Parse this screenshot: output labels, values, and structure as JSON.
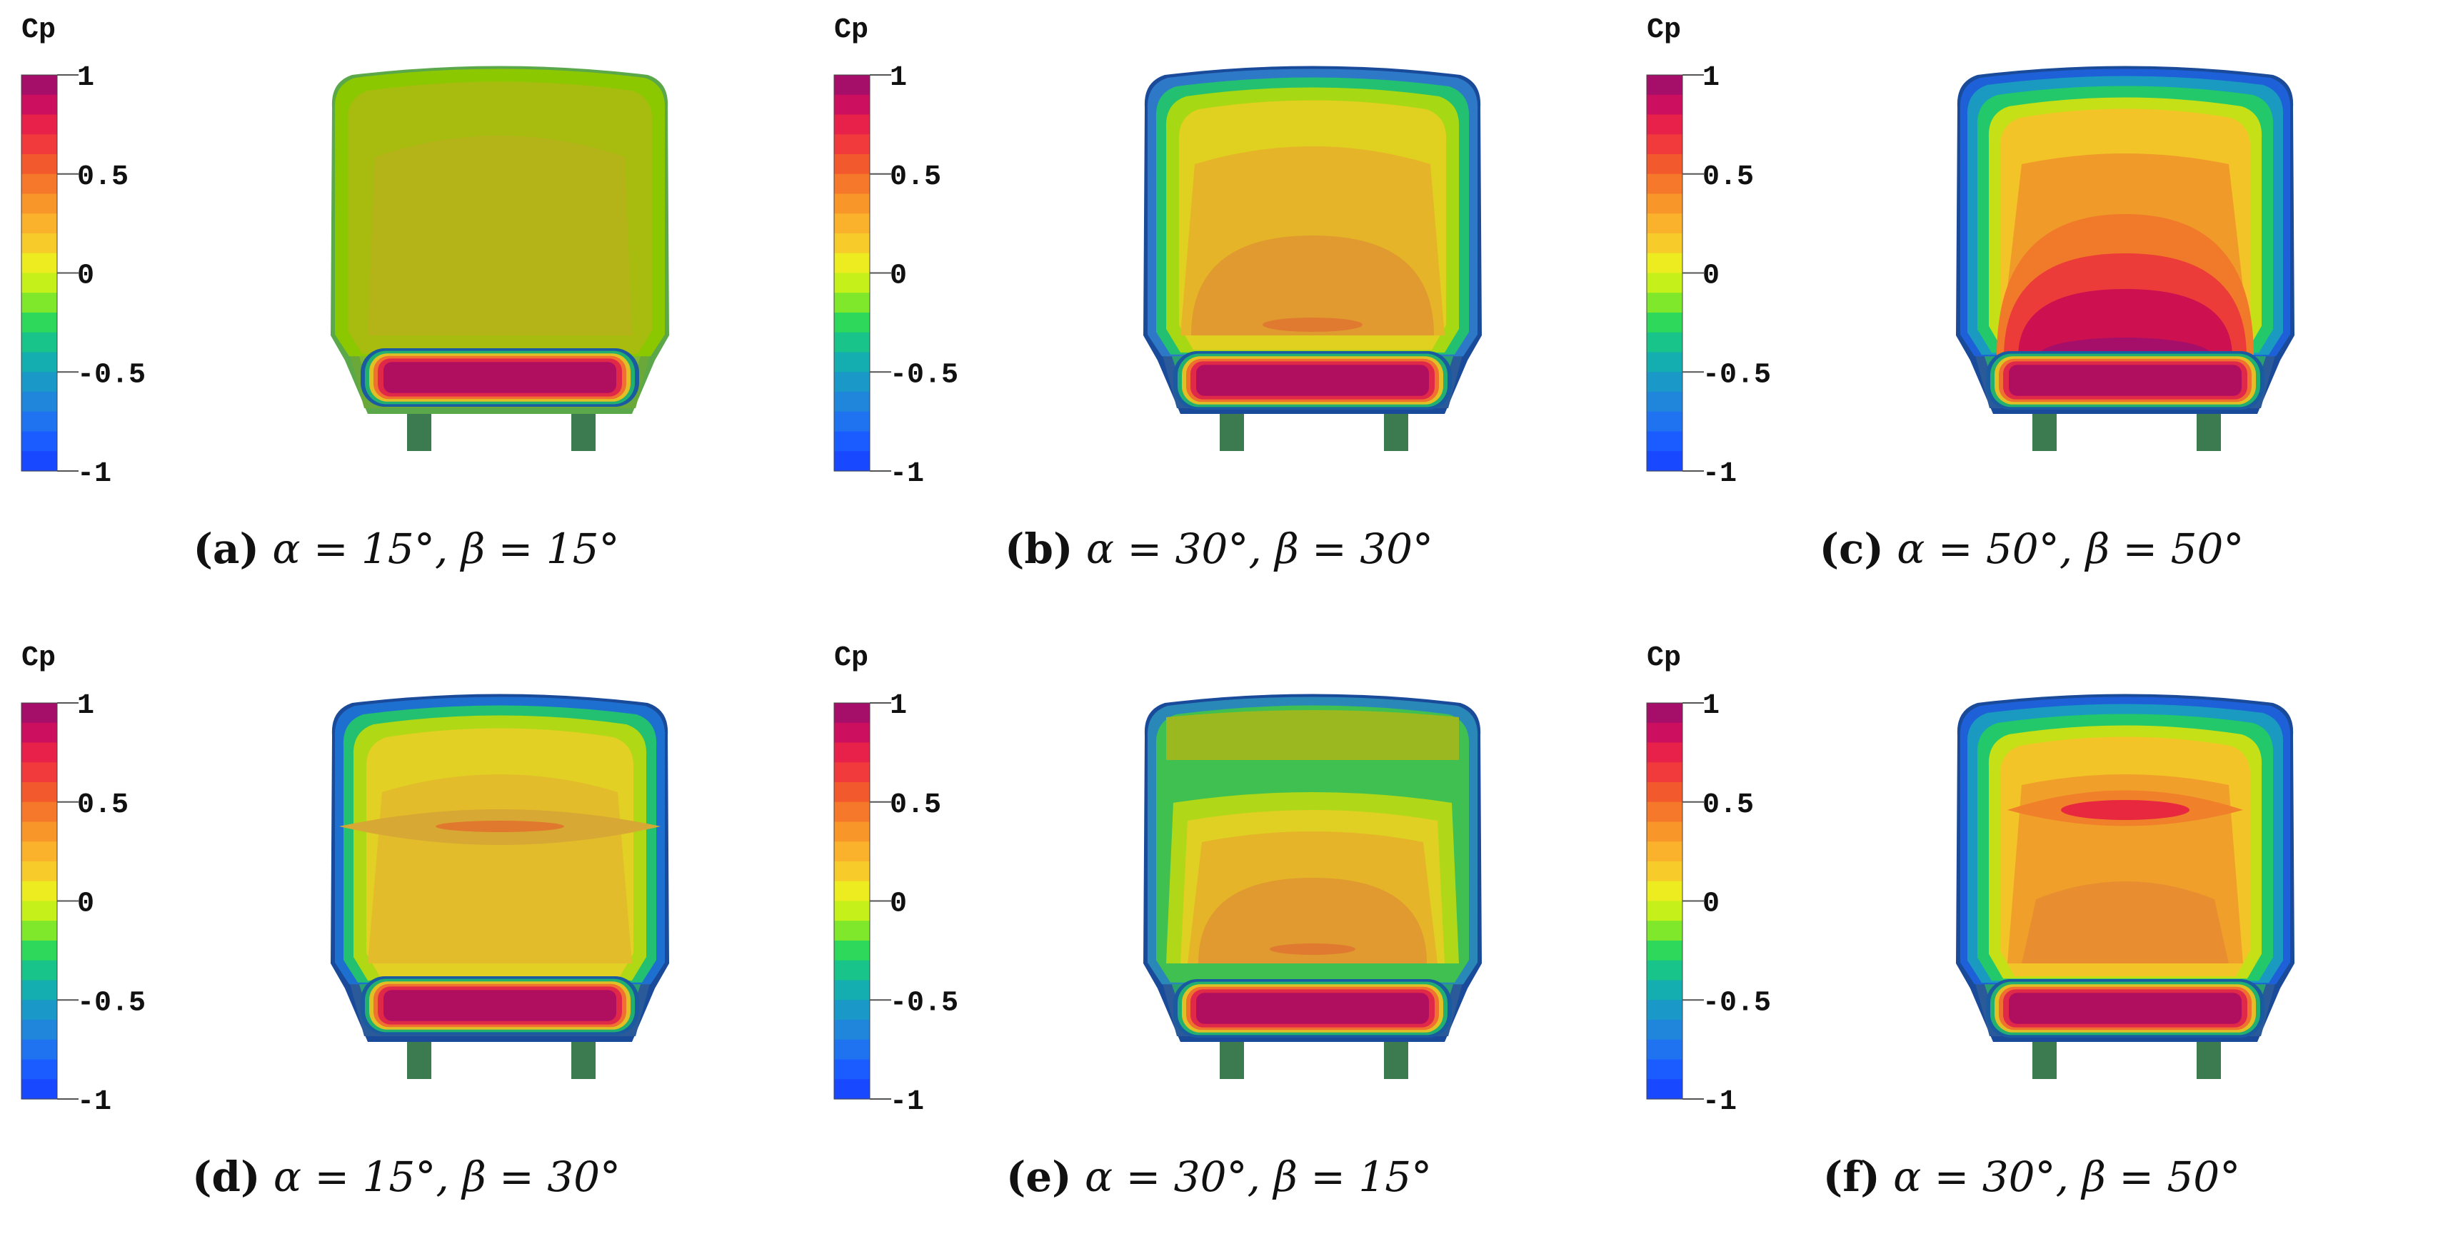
{
  "colorbar": {
    "title": "Cp",
    "ticks": [
      "1",
      "0.5",
      "0",
      "-0.5",
      "-1"
    ],
    "colors": [
      "#a50f6a",
      "#cc0f5e",
      "#e8214a",
      "#f03a3c",
      "#f25a2e",
      "#f6782a",
      "#f8962a",
      "#fab22c",
      "#f7cc2a",
      "#ecec20",
      "#c6f01a",
      "#7fe82b",
      "#2ed85a",
      "#18c48a",
      "#14aeb0",
      "#1a98c8",
      "#1f86dc",
      "#1f72f0",
      "#1a5cff",
      "#1848ff"
    ]
  },
  "panels": [
    {
      "label": "(a)",
      "cond": "α = 15°, β = 15°"
    },
    {
      "label": "(b)",
      "cond": "α = 30°, β = 30°"
    },
    {
      "label": "(c)",
      "cond": "α = 50°, β = 50°"
    },
    {
      "label": "(d)",
      "cond": "α = 15°, β = 30°"
    },
    {
      "label": "(e)",
      "cond": "α = 30°, β = 15°"
    },
    {
      "label": "(f)",
      "cond": "α = 30°, β = 50°"
    }
  ]
}
